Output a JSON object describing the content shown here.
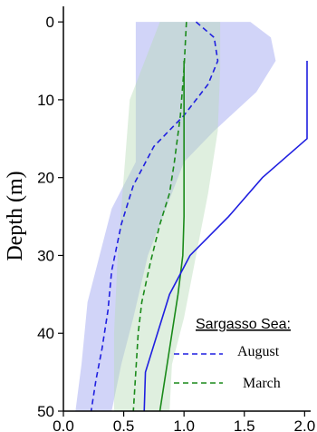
{
  "chart_data": {
    "type": "line",
    "title": "",
    "xlabel": "",
    "ylabel": "Depth (m)",
    "xlim": [
      0.0,
      2.05
    ],
    "ylim": [
      50,
      -2
    ],
    "y_inverted": true,
    "x_ticks": [
      0.0,
      0.5,
      1.0,
      1.5,
      2.0
    ],
    "x_tick_labels": [
      "0.0",
      "0.5",
      "1.0",
      "1.5",
      "2.0"
    ],
    "y_ticks": [
      0,
      10,
      20,
      30,
      40,
      50
    ],
    "y_tick_labels": [
      "0",
      "10",
      "20",
      "30",
      "40",
      "50"
    ],
    "grid": false,
    "legend": {
      "title": "Sargasso Sea:",
      "placement": "bottom-right",
      "entries": [
        {
          "label": "August",
          "color": "#1f1fe0",
          "style": "dashed"
        },
        {
          "label": "March",
          "color": "#1a8a1a",
          "style": "dashed"
        }
      ]
    },
    "series": [
      {
        "name": "August",
        "color": "#1f1fe0",
        "style": "dashed",
        "points": [
          [
            1.1,
            0
          ],
          [
            1.25,
            2
          ],
          [
            1.28,
            5
          ],
          [
            1.2,
            8
          ],
          [
            1.0,
            12
          ],
          [
            0.75,
            16
          ],
          [
            0.58,
            21
          ],
          [
            0.48,
            26
          ],
          [
            0.4,
            32
          ],
          [
            0.37,
            37
          ],
          [
            0.32,
            42
          ],
          [
            0.27,
            46
          ],
          [
            0.23,
            50
          ]
        ],
        "band": {
          "color": "#9aa0f0",
          "upper": [
            [
              1.55,
              0
            ],
            [
              1.72,
              2
            ],
            [
              1.76,
              5
            ],
            [
              1.6,
              9
            ],
            [
              1.25,
              14
            ],
            [
              1.0,
              18
            ],
            [
              0.85,
              24
            ],
            [
              0.7,
              30
            ],
            [
              0.58,
              38
            ],
            [
              0.48,
              44
            ],
            [
              0.4,
              50
            ]
          ],
          "lower": [
            [
              0.6,
              0
            ],
            [
              0.6,
              5
            ],
            [
              0.6,
              10
            ],
            [
              0.6,
              14
            ],
            [
              0.6,
              18
            ],
            [
              0.4,
              24
            ],
            [
              0.3,
              30
            ],
            [
              0.2,
              36
            ],
            [
              0.15,
              44
            ],
            [
              0.1,
              50
            ]
          ]
        }
      },
      {
        "name": "March",
        "color": "#1a8a1a",
        "style": "dashed",
        "points": [
          [
            1.02,
            0
          ],
          [
            1.0,
            6
          ],
          [
            0.97,
            12
          ],
          [
            0.92,
            18
          ],
          [
            0.88,
            22
          ],
          [
            0.8,
            26
          ],
          [
            0.72,
            31
          ],
          [
            0.65,
            36
          ],
          [
            0.62,
            40
          ],
          [
            0.6,
            45
          ],
          [
            0.58,
            50
          ]
        ],
        "band": {
          "color": "#b9dcb9",
          "upper": [
            [
              1.3,
              0
            ],
            [
              1.3,
              6
            ],
            [
              1.28,
              14
            ],
            [
              1.2,
              22
            ],
            [
              1.1,
              30
            ],
            [
              1.0,
              38
            ],
            [
              0.9,
              44
            ],
            [
              0.88,
              50
            ]
          ],
          "lower": [
            [
              0.8,
              0
            ],
            [
              0.7,
              4
            ],
            [
              0.55,
              10
            ],
            [
              0.5,
              20
            ],
            [
              0.45,
              30
            ],
            [
              0.42,
              40
            ],
            [
              0.42,
              50
            ]
          ]
        }
      },
      {
        "name": "",
        "color": "#1a8a1a",
        "style": "solid",
        "points": [
          [
            1.0,
            5
          ],
          [
            1.0,
            15
          ],
          [
            1.0,
            25
          ],
          [
            0.99,
            30
          ],
          [
            0.95,
            35
          ],
          [
            0.9,
            40
          ],
          [
            0.85,
            45
          ],
          [
            0.8,
            50
          ]
        ]
      },
      {
        "name": "",
        "color": "#1f1fe0",
        "style": "solid",
        "points": [
          [
            2.02,
            5
          ],
          [
            2.02,
            15
          ],
          [
            1.65,
            20
          ],
          [
            1.37,
            25
          ],
          [
            1.05,
            30
          ],
          [
            0.88,
            35
          ],
          [
            0.78,
            40
          ],
          [
            0.68,
            45
          ],
          [
            0.67,
            50
          ]
        ]
      }
    ]
  }
}
